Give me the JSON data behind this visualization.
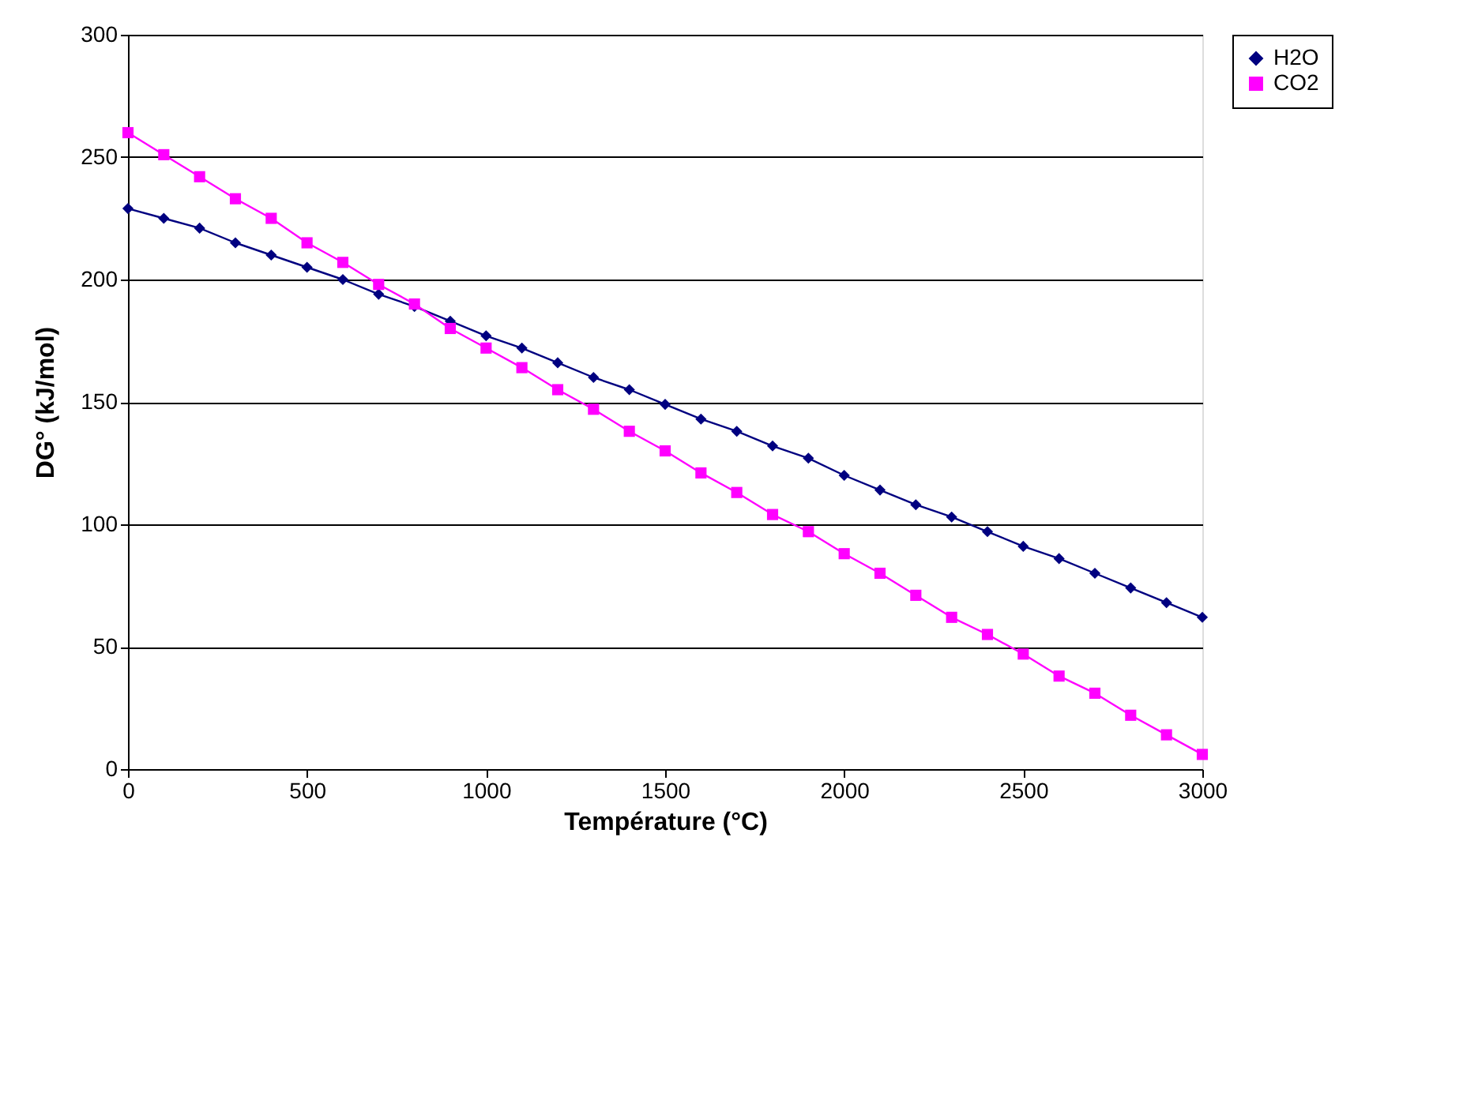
{
  "chart_data": {
    "type": "line",
    "xlabel": "Température (°C)",
    "ylabel": "DG° (kJ/mol)",
    "x": [
      0,
      100,
      200,
      300,
      400,
      500,
      600,
      700,
      800,
      900,
      1000,
      1100,
      1200,
      1300,
      1400,
      1500,
      1600,
      1700,
      1800,
      1900,
      2000,
      2100,
      2200,
      2300,
      2400,
      2500,
      2600,
      2700,
      2800,
      2900,
      3000
    ],
    "series": [
      {
        "name": "H2O",
        "color": "#000080",
        "marker": "diamond",
        "values": [
          229,
          225,
          221,
          215,
          210,
          205,
          200,
          194,
          189,
          183,
          177,
          172,
          166,
          160,
          155,
          149,
          143,
          138,
          132,
          127,
          120,
          114,
          108,
          103,
          97,
          91,
          86,
          80,
          74,
          68,
          62
        ]
      },
      {
        "name": "CO2",
        "color": "#ff00ff",
        "marker": "square",
        "values": [
          260,
          251,
          242,
          233,
          225,
          215,
          207,
          198,
          190,
          180,
          172,
          164,
          155,
          147,
          138,
          130,
          121,
          113,
          104,
          97,
          88,
          80,
          71,
          62,
          55,
          47,
          38,
          31,
          22,
          14,
          6
        ]
      }
    ],
    "xlim": [
      0,
      3000
    ],
    "xticks": [
      0,
      500,
      1000,
      1500,
      2000,
      2500,
      3000
    ],
    "ylim": [
      0,
      300
    ],
    "yticks": [
      0,
      50,
      100,
      150,
      200,
      250,
      300
    ],
    "grid": "y",
    "legend": "right",
    "line_style": "solid"
  }
}
